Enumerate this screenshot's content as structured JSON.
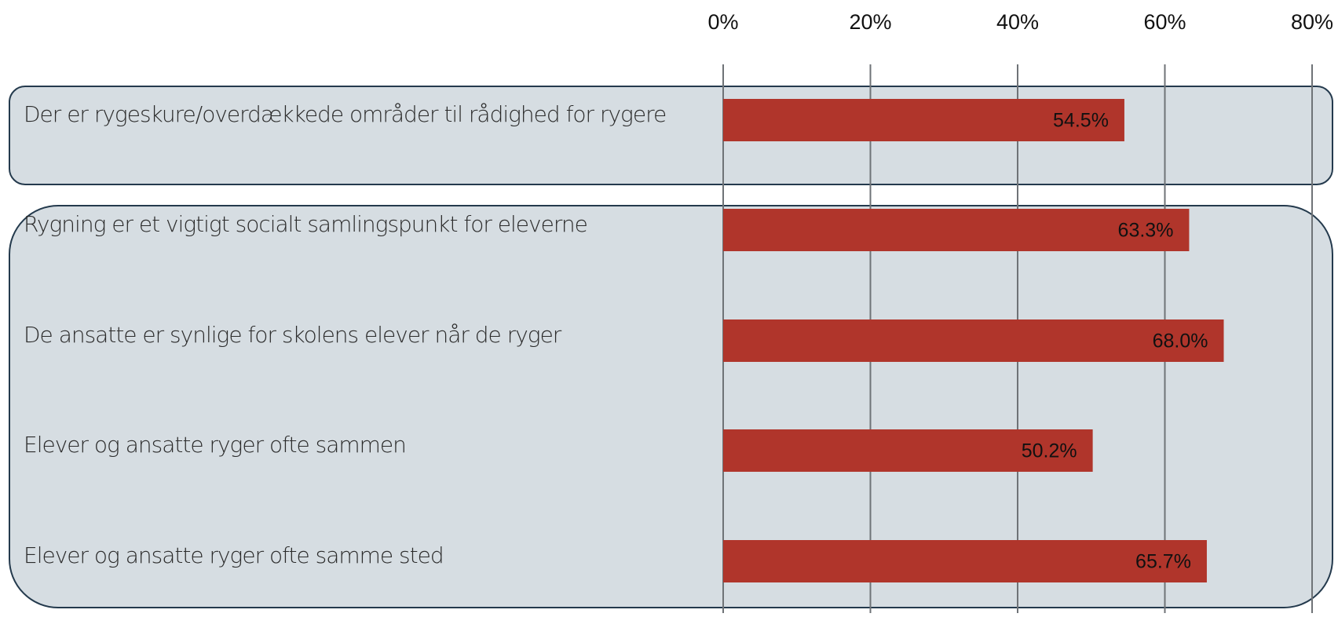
{
  "chart_data": {
    "type": "bar",
    "orientation": "horizontal",
    "categories": [
      "Der er rygeskure/overdækkede områder til rådighed for rygere",
      "Rygning er et vigtigt socialt samlingspunkt for eleverne",
      "De ansatte er synlige for skolens elever når de ryger",
      "Elever og ansatte ryger ofte sammen",
      "Elever og ansatte ryger ofte samme sted"
    ],
    "values": [
      54.5,
      63.3,
      68.0,
      50.2,
      65.7
    ],
    "value_labels": [
      "54.5%",
      "63.3%",
      "68.0%",
      "50.2%",
      "65.7%"
    ],
    "color": "#b0352b",
    "xlim": [
      0,
      80
    ],
    "xticks": [
      {
        "value": 0,
        "label": "0%"
      },
      {
        "value": 20,
        "label": "20%"
      },
      {
        "value": 40,
        "label": "40%"
      },
      {
        "value": 60,
        "label": "60%"
      },
      {
        "value": 80,
        "label": "80%"
      }
    ],
    "grid": true
  }
}
